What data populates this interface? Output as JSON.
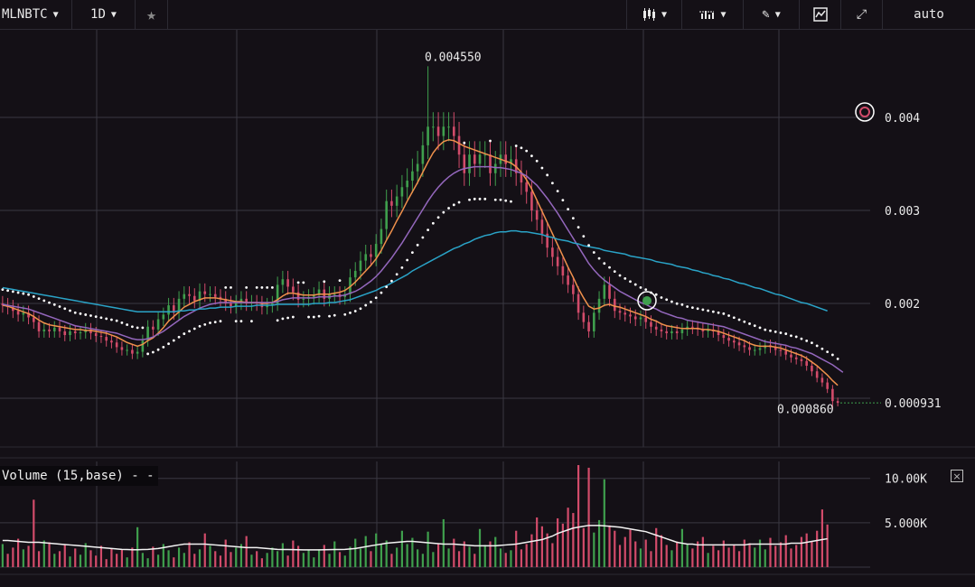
{
  "toolbar": {
    "symbol": "MLNBTC",
    "interval": "1D",
    "scale_mode": "auto"
  },
  "colors": {
    "background": "#141016",
    "grid": "#3a3842",
    "up_candle": "#3f9f4d",
    "down_candle": "#d24b6a",
    "ma_fast": "#f0914c",
    "ma_mid": "#9467bd",
    "ma_slow": "#2aa3c7",
    "psar": "#ffffff",
    "volume_ma": "#f2f2f2"
  },
  "annotations": {
    "high_label": "0.004550",
    "low_label": "0.000860",
    "last_price": "0.000931"
  },
  "volume_panel": {
    "title": "Volume (15,base) - -",
    "close_label": "×"
  },
  "chart_data": [
    {
      "type": "candlestick",
      "symbol": "MLNBTC",
      "interval": "1D",
      "y_ticks": [
        0.002,
        0.003,
        0.004
      ],
      "y_tick_labels": [
        "0.002",
        "0.003",
        "0.004"
      ],
      "ylim": [
        0.0005,
        0.0047
      ],
      "high": 0.00455,
      "low": 0.00086,
      "last": 0.000931,
      "grid": true,
      "close": [
        0.00198,
        0.00196,
        0.00192,
        0.00188,
        0.0019,
        0.00185,
        0.0018,
        0.0017,
        0.00172,
        0.0017,
        0.00174,
        0.0017,
        0.00166,
        0.0017,
        0.00168,
        0.00169,
        0.00172,
        0.00168,
        0.00165,
        0.00164,
        0.0016,
        0.00158,
        0.00153,
        0.0015,
        0.0015,
        0.00146,
        0.00148,
        0.0016,
        0.00175,
        0.00172,
        0.00183,
        0.00188,
        0.00198,
        0.0019,
        0.00205,
        0.0021,
        0.00208,
        0.00203,
        0.00213,
        0.0021,
        0.0021,
        0.00207,
        0.00205,
        0.002,
        0.00197,
        0.00201,
        0.00205,
        0.002,
        0.00201,
        0.002,
        0.00196,
        0.00198,
        0.002,
        0.0022,
        0.00226,
        0.00218,
        0.00212,
        0.00204,
        0.00205,
        0.00207,
        0.00209,
        0.00215,
        0.00205,
        0.0021,
        0.0021,
        0.00207,
        0.0021,
        0.00228,
        0.00235,
        0.00246,
        0.00253,
        0.0025,
        0.00264,
        0.0028,
        0.0031,
        0.00305,
        0.00315,
        0.00325,
        0.00332,
        0.00342,
        0.0035,
        0.0037,
        0.0039,
        0.0039,
        0.0038,
        0.0039,
        0.0039,
        0.0038,
        0.0036,
        0.0034,
        0.0036,
        0.0035,
        0.0036,
        0.0036,
        0.0034,
        0.0035,
        0.0036,
        0.0035,
        0.00355,
        0.0034,
        0.0033,
        0.0032,
        0.003,
        0.0029,
        0.00275,
        0.0026,
        0.0025,
        0.0024,
        0.0023,
        0.0022,
        0.0021,
        0.0019,
        0.0018,
        0.0017,
        0.0019,
        0.00205,
        0.0022,
        0.00205,
        0.00192,
        0.0019,
        0.00188,
        0.00186,
        0.00183,
        0.00185,
        0.0018,
        0.00175,
        0.00172,
        0.0017,
        0.00168,
        0.0017,
        0.00168,
        0.00172,
        0.00175,
        0.00174,
        0.00172,
        0.0017,
        0.00172,
        0.0017,
        0.00166,
        0.00163,
        0.0016,
        0.00158,
        0.00155,
        0.00153,
        0.0015,
        0.0015,
        0.00152,
        0.00155,
        0.00153,
        0.0015,
        0.00149,
        0.00145,
        0.00142,
        0.0014,
        0.00138,
        0.00133,
        0.00127,
        0.0012,
        0.00115,
        0.00108,
        0.00095,
        0.000931
      ],
      "series": [
        {
          "name": "",
          "type": "line",
          "period_hint": "fast",
          "values": [
            0.00198,
            0.00197,
            0.00195,
            0.00193,
            0.00191,
            0.00189,
            0.00186,
            0.00182,
            0.00179,
            0.00177,
            0.00176,
            0.00175,
            0.00174,
            0.00173,
            0.00172,
            0.00172,
            0.00171,
            0.00171,
            0.0017,
            0.00169,
            0.00168,
            0.00166,
            0.00164,
            0.00161,
            0.00158,
            0.00156,
            0.00154,
            0.00156,
            0.0016,
            0.00163,
            0.00168,
            0.00174,
            0.00181,
            0.00186,
            0.00191,
            0.00196,
            0.00199,
            0.00202,
            0.00204,
            0.00206,
            0.00206,
            0.00206,
            0.00205,
            0.00204,
            0.00203,
            0.00202,
            0.00202,
            0.00201,
            0.00201,
            0.00201,
            0.002,
            0.002,
            0.00201,
            0.00204,
            0.00208,
            0.00211,
            0.00211,
            0.0021,
            0.00209,
            0.00209,
            0.00209,
            0.0021,
            0.0021,
            0.0021,
            0.00211,
            0.00212,
            0.00214,
            0.00218,
            0.00223,
            0.00229,
            0.00235,
            0.00241,
            0.00248,
            0.00257,
            0.00268,
            0.00278,
            0.00289,
            0.00299,
            0.0031,
            0.0032,
            0.0033,
            0.00341,
            0.00352,
            0.00362,
            0.00369,
            0.00374,
            0.00376,
            0.00375,
            0.00372,
            0.00369,
            0.00367,
            0.00365,
            0.00363,
            0.00361,
            0.00359,
            0.00357,
            0.00355,
            0.00353,
            0.00351,
            0.00347,
            0.00341,
            0.00333,
            0.00323,
            0.00311,
            0.00299,
            0.00287,
            0.00275,
            0.00263,
            0.00251,
            0.00239,
            0.00228,
            0.00216,
            0.00206,
            0.00197,
            0.00194,
            0.00195,
            0.00198,
            0.00199,
            0.00197,
            0.00196,
            0.00194,
            0.00192,
            0.0019,
            0.00188,
            0.00186,
            0.00183,
            0.00181,
            0.00178,
            0.00176,
            0.00175,
            0.00174,
            0.00173,
            0.00173,
            0.00173,
            0.00173,
            0.00172,
            0.00172,
            0.00171,
            0.0017,
            0.00168,
            0.00166,
            0.00164,
            0.00162,
            0.0016,
            0.00157,
            0.00155,
            0.00154,
            0.00154,
            0.00154,
            0.00153,
            0.00152,
            0.0015,
            0.00148,
            0.00146,
            0.00144,
            0.00141,
            0.00137,
            0.00133,
            0.00128,
            0.00123,
            0.00117,
            0.00112
          ]
        },
        {
          "name": "",
          "type": "line",
          "period_hint": "mid",
          "values": [
            0.00199,
            0.00198,
            0.00197,
            0.00196,
            0.00195,
            0.00194,
            0.00192,
            0.0019,
            0.00188,
            0.00186,
            0.00184,
            0.00182,
            0.0018,
            0.00178,
            0.00176,
            0.00175,
            0.00174,
            0.00173,
            0.00172,
            0.00171,
            0.0017,
            0.00169,
            0.00168,
            0.00166,
            0.00164,
            0.00162,
            0.00161,
            0.00161,
            0.00162,
            0.00164,
            0.00167,
            0.0017,
            0.00174,
            0.00178,
            0.00182,
            0.00186,
            0.00189,
            0.00192,
            0.00195,
            0.00197,
            0.00199,
            0.002,
            0.00201,
            0.00201,
            0.00201,
            0.00201,
            0.00201,
            0.00201,
            0.00201,
            0.00201,
            0.00201,
            0.00201,
            0.00201,
            0.00202,
            0.00204,
            0.00205,
            0.00206,
            0.00206,
            0.00206,
            0.00206,
            0.00206,
            0.00207,
            0.00207,
            0.00207,
            0.00208,
            0.00208,
            0.00209,
            0.00211,
            0.00213,
            0.00216,
            0.0022,
            0.00224,
            0.00229,
            0.00235,
            0.00242,
            0.00249,
            0.00257,
            0.00265,
            0.00274,
            0.00283,
            0.00292,
            0.00301,
            0.0031,
            0.00318,
            0.00325,
            0.00331,
            0.00336,
            0.0034,
            0.00343,
            0.00345,
            0.00346,
            0.00347,
            0.00347,
            0.00347,
            0.00347,
            0.00346,
            0.00346,
            0.00345,
            0.00344,
            0.00342,
            0.0034,
            0.00337,
            0.00332,
            0.00327,
            0.0032,
            0.00313,
            0.00305,
            0.00297,
            0.00288,
            0.00279,
            0.0027,
            0.00261,
            0.00252,
            0.00243,
            0.00236,
            0.0023,
            0.00225,
            0.00221,
            0.00217,
            0.00213,
            0.0021,
            0.00207,
            0.00204,
            0.00201,
            0.00199,
            0.00196,
            0.00194,
            0.00191,
            0.00189,
            0.00187,
            0.00185,
            0.00184,
            0.00182,
            0.00181,
            0.0018,
            0.00179,
            0.00178,
            0.00177,
            0.00176,
            0.00175,
            0.00173,
            0.00171,
            0.00169,
            0.00167,
            0.00165,
            0.00163,
            0.00161,
            0.00159,
            0.00158,
            0.00157,
            0.00156,
            0.00155,
            0.00153,
            0.00152,
            0.0015,
            0.00148,
            0.00146,
            0.00143,
            0.0014,
            0.00137,
            0.00134,
            0.0013,
            0.00126
          ]
        },
        {
          "name": "",
          "type": "line",
          "period_hint": "slow",
          "values": [
            0.00217,
            0.00216,
            0.00215,
            0.00214,
            0.00213,
            0.00212,
            0.00211,
            0.0021,
            0.00209,
            0.00208,
            0.00207,
            0.00206,
            0.00205,
            0.00204,
            0.00203,
            0.00202,
            0.00201,
            0.002,
            0.00199,
            0.00198,
            0.00197,
            0.00196,
            0.00195,
            0.00194,
            0.00193,
            0.00192,
            0.00191,
            0.00191,
            0.00191,
            0.00191,
            0.00191,
            0.00191,
            0.00191,
            0.00191,
            0.00192,
            0.00192,
            0.00193,
            0.00193,
            0.00194,
            0.00194,
            0.00195,
            0.00195,
            0.00196,
            0.00196,
            0.00196,
            0.00197,
            0.00197,
            0.00197,
            0.00197,
            0.00198,
            0.00198,
            0.00198,
            0.00198,
            0.00199,
            0.00199,
            0.00199,
            0.00199,
            0.00199,
            0.00199,
            0.00199,
            0.002,
            0.002,
            0.002,
            0.00201,
            0.00201,
            0.00202,
            0.00203,
            0.00204,
            0.00206,
            0.00208,
            0.0021,
            0.00212,
            0.00214,
            0.00217,
            0.00219,
            0.00222,
            0.00225,
            0.00228,
            0.00231,
            0.00235,
            0.00238,
            0.00241,
            0.00244,
            0.00247,
            0.0025,
            0.00253,
            0.00256,
            0.00259,
            0.00261,
            0.00264,
            0.00266,
            0.00269,
            0.00271,
            0.00273,
            0.00274,
            0.00276,
            0.00277,
            0.00277,
            0.00278,
            0.00278,
            0.00277,
            0.00277,
            0.00276,
            0.00275,
            0.00274,
            0.00272,
            0.00271,
            0.00269,
            0.00268,
            0.00267,
            0.00265,
            0.00264,
            0.00262,
            0.00261,
            0.0026,
            0.00259,
            0.00257,
            0.00256,
            0.00255,
            0.00254,
            0.00253,
            0.00251,
            0.0025,
            0.00249,
            0.00248,
            0.00247,
            0.00245,
            0.00244,
            0.00243,
            0.00242,
            0.0024,
            0.00239,
            0.00238,
            0.00236,
            0.00235,
            0.00233,
            0.00232,
            0.0023,
            0.00229,
            0.00227,
            0.00226,
            0.00224,
            0.00222,
            0.00221,
            0.00219,
            0.00217,
            0.00216,
            0.00214,
            0.00212,
            0.0021,
            0.00209,
            0.00207,
            0.00205,
            0.00203,
            0.00201,
            0.002,
            0.00198,
            0.00196,
            0.00194,
            0.00192
          ]
        }
      ]
    },
    {
      "type": "bar",
      "title": "Volume (15,base) - -",
      "y_ticks": [
        5000,
        10000
      ],
      "y_tick_labels": [
        "5.000K",
        "10.00K"
      ],
      "ylim": [
        0,
        11500
      ],
      "values": [
        2600,
        1500,
        2200,
        3200,
        2000,
        2400,
        7600,
        1800,
        3000,
        2800,
        1500,
        1800,
        2500,
        1200,
        2100,
        1400,
        2700,
        1900,
        1300,
        2400,
        900,
        2100,
        1500,
        2000,
        1100,
        2200,
        4500,
        1600,
        1000,
        2300,
        1400,
        2600,
        1900,
        1100,
        2200,
        1600,
        2800,
        1500,
        2000,
        3800,
        2400,
        1800,
        1300,
        3100,
        1700,
        2200,
        2600,
        3500,
        1400,
        1800,
        1000,
        1600,
        2200,
        1800,
        2700,
        1300,
        3000,
        2400,
        1600,
        1900,
        1100,
        2000,
        2500,
        1500,
        2900,
        1700,
        1300,
        2300,
        3200,
        2100,
        3500,
        1800,
        3800,
        2600,
        3000,
        1500,
        2200,
        4100,
        2600,
        3300,
        2000,
        1500,
        4000,
        1700,
        2600,
        5400,
        2100,
        3200,
        1800,
        2900,
        2300,
        1500,
        4300,
        2500,
        2900,
        3400,
        2100,
        1600,
        1900,
        4100,
        2000,
        2600,
        3700,
        5600,
        4600,
        3800,
        2700,
        5500,
        4900,
        6700,
        6100,
        11500,
        4400,
        11200,
        3900,
        5300,
        9900,
        4700,
        4100,
        2500,
        3400,
        4200,
        2900,
        2100,
        3100,
        1800,
        4400,
        3600,
        2500,
        1900,
        2900,
        4300,
        2600,
        2100,
        2900,
        3400,
        1600,
        2400,
        1900,
        3000,
        2200,
        2500,
        1800,
        3100,
        2700,
        2200,
        3100,
        2000,
        3300,
        2400,
        2800,
        3600,
        2100,
        2500,
        3400,
        3800,
        2900,
        4100,
        6500,
        4800
      ],
      "volume_ma": [
        3000,
        3000,
        2950,
        2900,
        2850,
        2800,
        2800,
        2800,
        2750,
        2700,
        2650,
        2600,
        2550,
        2500,
        2450,
        2400,
        2350,
        2300,
        2250,
        2200,
        2150,
        2100,
        2050,
        2000,
        1980,
        1960,
        1960,
        1980,
        2000,
        2050,
        2100,
        2200,
        2300,
        2400,
        2500,
        2600,
        2600,
        2600,
        2600,
        2600,
        2550,
        2500,
        2450,
        2400,
        2350,
        2300,
        2250,
        2200,
        2200,
        2200,
        2150,
        2100,
        2050,
        2000,
        1990,
        1980,
        1970,
        1960,
        1950,
        1950,
        1950,
        1950,
        1960,
        1970,
        1980,
        1990,
        2000,
        2050,
        2100,
        2200,
        2300,
        2400,
        2500,
        2600,
        2700,
        2750,
        2800,
        2850,
        2900,
        2900,
        2850,
        2800,
        2750,
        2700,
        2650,
        2600,
        2600,
        2600,
        2550,
        2500,
        2450,
        2400,
        2400,
        2400,
        2400,
        2400,
        2450,
        2500,
        2550,
        2600,
        2700,
        2800,
        2900,
        3000,
        3100,
        3300,
        3500,
        3800,
        4000,
        4200,
        4400,
        4500,
        4600,
        4700,
        4700,
        4700,
        4650,
        4600,
        4550,
        4500,
        4400,
        4300,
        4200,
        4100,
        4000,
        3800,
        3600,
        3400,
        3200,
        3000,
        2800,
        2700,
        2600,
        2600,
        2500,
        2500,
        2500,
        2500,
        2500,
        2500,
        2500,
        2500,
        2500,
        2500,
        2600,
        2600,
        2600,
        2600,
        2600,
        2600,
        2600,
        2600,
        2700,
        2700,
        2700,
        2800,
        2900,
        3000,
        3100,
        3200
      ]
    }
  ]
}
